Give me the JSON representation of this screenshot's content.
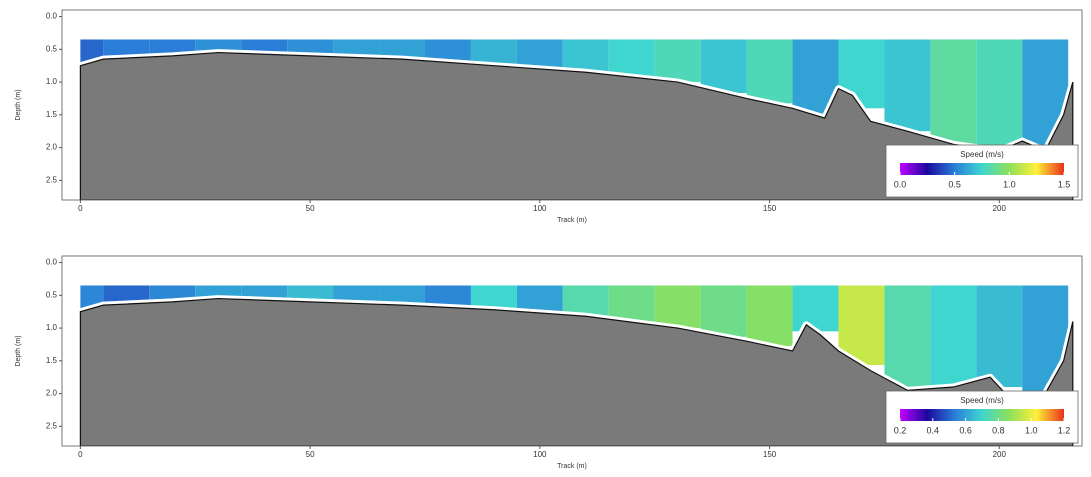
{
  "chart_data": [
    {
      "type": "section",
      "xlabel": "Track (m)",
      "ylabel": "Depth (m)",
      "xlim": [
        -4,
        218
      ],
      "xticks": [
        0,
        50,
        100,
        150,
        200
      ],
      "ylim": [
        -0.1,
        2.8
      ],
      "yticks": [
        {
          "value": 0,
          "label": "0.0"
        },
        {
          "value": 0.5,
          "label": "0.5"
        },
        {
          "value": 1,
          "label": "1.0"
        },
        {
          "value": 1.5,
          "label": "1.5"
        },
        {
          "value": 2,
          "label": "2.0"
        },
        {
          "value": 2.5,
          "label": "2.5"
        }
      ],
      "surface": 0.35,
      "bed_x": [
        0,
        5,
        20,
        30,
        50,
        70,
        90,
        110,
        130,
        145,
        155,
        162,
        165,
        168,
        172,
        180,
        190,
        200,
        205,
        210,
        214,
        216
      ],
      "bed_depth": [
        0.75,
        0.65,
        0.6,
        0.55,
        0.6,
        0.65,
        0.75,
        0.85,
        1.0,
        1.25,
        1.4,
        1.55,
        1.1,
        1.2,
        1.6,
        1.75,
        1.95,
        2.05,
        1.9,
        2.05,
        1.5,
        1.0
      ],
      "x": [
        0,
        10,
        20,
        30,
        40,
        50,
        60,
        70,
        80,
        90,
        100,
        110,
        120,
        130,
        140,
        150,
        160,
        170,
        180,
        190,
        200,
        210
      ],
      "speeds": [
        0.45,
        0.5,
        0.5,
        0.55,
        0.5,
        0.55,
        0.6,
        0.6,
        0.55,
        0.65,
        0.6,
        0.7,
        0.75,
        0.8,
        0.7,
        0.8,
        0.6,
        0.75,
        0.7,
        0.85,
        0.8,
        0.6
      ],
      "legend_title": "Speed (m/s)",
      "clim": [
        0,
        1.5
      ],
      "cticks": [
        {
          "value": 0,
          "label": "0.0"
        },
        {
          "value": 0.5,
          "label": "0.5"
        },
        {
          "value": 1,
          "label": "1.0"
        },
        {
          "value": 1.5,
          "label": "1.5"
        }
      ],
      "colorscale": [
        "#c000ff",
        "#1a0a9e",
        "#2a7ed8",
        "#3fd6d0",
        "#8ee05a",
        "#fff03a",
        "#e8301a"
      ]
    },
    {
      "type": "section",
      "xlabel": "Track (m)",
      "ylabel": "Depth (m)",
      "xlim": [
        -4,
        218
      ],
      "xticks": [
        0,
        50,
        100,
        150,
        200
      ],
      "ylim": [
        -0.1,
        2.8
      ],
      "yticks": [
        {
          "value": 0,
          "label": "0.0"
        },
        {
          "value": 0.5,
          "label": "0.5"
        },
        {
          "value": 1,
          "label": "1.0"
        },
        {
          "value": 1.5,
          "label": "1.5"
        },
        {
          "value": 2,
          "label": "2.0"
        },
        {
          "value": 2.5,
          "label": "2.5"
        }
      ],
      "surface": 0.35,
      "bed_x": [
        0,
        5,
        20,
        30,
        50,
        70,
        90,
        110,
        130,
        145,
        155,
        158,
        161,
        165,
        172,
        180,
        190,
        198,
        202,
        205,
        210,
        214,
        216
      ],
      "bed_depth": [
        0.75,
        0.65,
        0.6,
        0.55,
        0.6,
        0.65,
        0.72,
        0.82,
        1.0,
        1.2,
        1.35,
        0.95,
        1.1,
        1.35,
        1.65,
        1.95,
        1.9,
        1.75,
        2.05,
        2.1,
        2.0,
        1.5,
        0.9
      ],
      "x": [
        0,
        10,
        20,
        30,
        40,
        50,
        60,
        70,
        80,
        90,
        100,
        110,
        120,
        130,
        140,
        150,
        160,
        170,
        180,
        190,
        200,
        210
      ],
      "speeds": [
        0.55,
        0.5,
        0.55,
        0.6,
        0.6,
        0.65,
        0.6,
        0.6,
        0.55,
        0.7,
        0.6,
        0.75,
        0.8,
        0.85,
        0.8,
        0.85,
        0.7,
        0.95,
        0.75,
        0.7,
        0.65,
        0.6
      ],
      "legend_title": "Speed (m/s)",
      "clim": [
        0.2,
        1.2
      ],
      "cticks": [
        {
          "value": 0.2,
          "label": "0.2"
        },
        {
          "value": 0.4,
          "label": "0.4"
        },
        {
          "value": 0.6,
          "label": "0.6"
        },
        {
          "value": 0.8,
          "label": "0.8"
        },
        {
          "value": 1,
          "label": "1.0"
        },
        {
          "value": 1.2,
          "label": "1.2"
        }
      ],
      "colorscale": [
        "#c000ff",
        "#1a0a9e",
        "#2a7ed8",
        "#3fd6d0",
        "#8ee05a",
        "#fff03a",
        "#e8301a"
      ]
    }
  ]
}
